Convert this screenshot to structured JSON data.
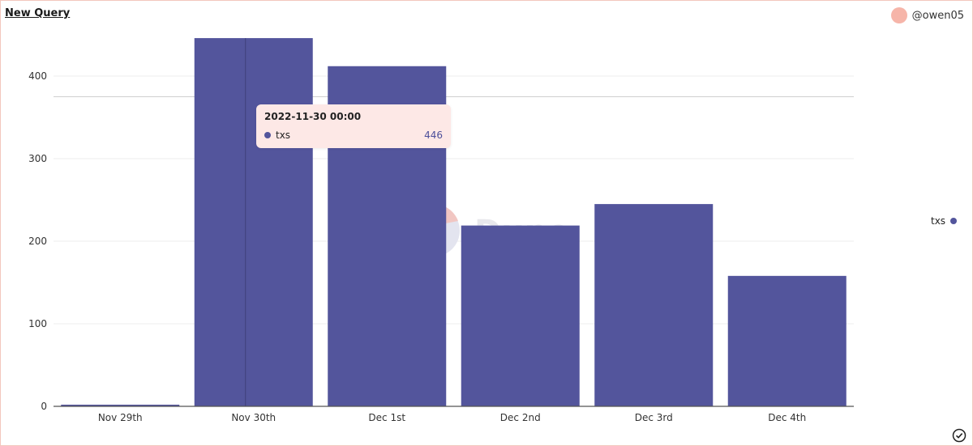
{
  "header": {
    "title": "New Query",
    "username": "@owen05"
  },
  "colors": {
    "bar": "#53559c",
    "avatar": "#f6b5a9",
    "tooltip_bg": "#fde8e6",
    "watermark_text": "#e8e8ec"
  },
  "watermark": "Dune",
  "tooltip": {
    "title": "2022-11-30 00:00",
    "series": "txs",
    "value": "446"
  },
  "legend": {
    "label": "txs"
  },
  "chart_data": {
    "type": "bar",
    "categories": [
      "Nov 29th",
      "Nov 30th",
      "Dec 1st",
      "Dec 2nd",
      "Dec 3rd",
      "Dec 4th"
    ],
    "series": [
      {
        "name": "txs",
        "values": [
          2,
          446,
          412,
          219,
          245,
          158
        ]
      }
    ],
    "yticks": [
      0,
      100,
      200,
      300,
      400
    ],
    "ylim": [
      0,
      460
    ],
    "grid": true,
    "legend_position": "right",
    "highlighted_category": "Nov 30th",
    "crosshair_value": 375
  }
}
